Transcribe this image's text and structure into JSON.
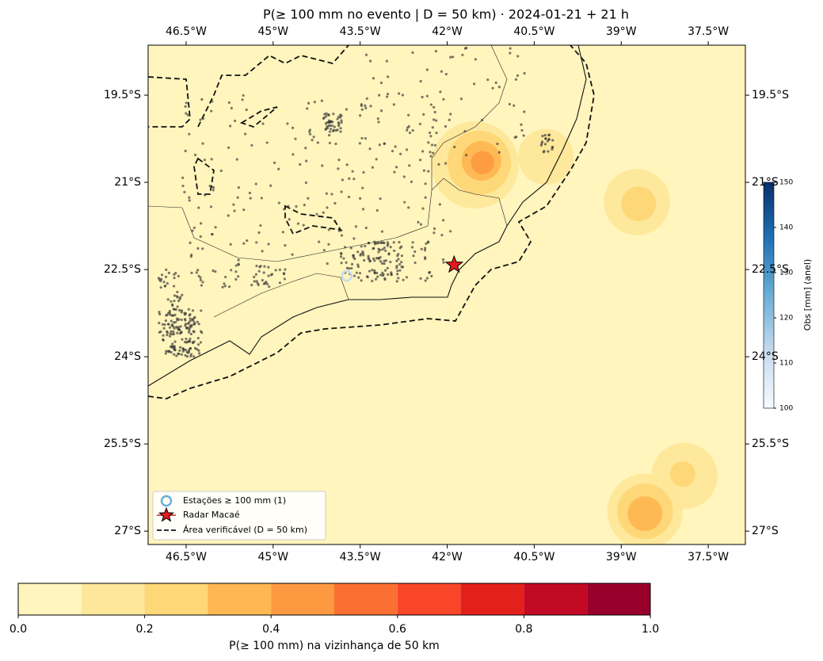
{
  "chart_data": {
    "type": "map",
    "title": "P(≥ 100 mm no evento | D = 50 km)  ·  2024-01-21 + 21 h",
    "xlim": [
      -47.155,
      -36.86
    ],
    "ylim": [
      -27.23,
      -18.64
    ],
    "xticks": [
      {
        "value": -46.5,
        "label": "46.5°W"
      },
      {
        "value": -45,
        "label": "45°W"
      },
      {
        "value": -43.5,
        "label": "43.5°W"
      },
      {
        "value": -42,
        "label": "42°W"
      },
      {
        "value": -40.5,
        "label": "40.5°W"
      },
      {
        "value": -39,
        "label": "39°W"
      },
      {
        "value": -37.5,
        "label": "37.5°W"
      }
    ],
    "yticks": [
      {
        "value": -19.5,
        "label": "19.5°S"
      },
      {
        "value": -21,
        "label": "21°S"
      },
      {
        "value": -22.5,
        "label": "22.5°S"
      },
      {
        "value": -24,
        "label": "24°S"
      },
      {
        "value": -25.5,
        "label": "25.5°S"
      },
      {
        "value": -27,
        "label": "27°S"
      }
    ],
    "probability_areas": [
      {
        "lon": -41.52,
        "lat": -20.7,
        "radius": 0.75,
        "level": 0.1
      },
      {
        "lon": -40.3,
        "lat": -20.56,
        "radius": 0.48,
        "level": 0.1
      },
      {
        "lon": -38.73,
        "lat": -21.34,
        "radius": 0.57,
        "level": 0.1
      },
      {
        "lon": -37.91,
        "lat": -26.05,
        "radius": 0.57,
        "level": 0.1
      },
      {
        "lon": -38.59,
        "lat": -26.66,
        "radius": 0.65,
        "level": 0.1
      },
      {
        "lon": -41.45,
        "lat": -20.66,
        "radius": 0.55,
        "level": 0.2
      },
      {
        "lon": -38.7,
        "lat": -21.37,
        "radius": 0.3,
        "level": 0.2
      },
      {
        "lon": -37.94,
        "lat": -26.02,
        "radius": 0.22,
        "level": 0.2
      },
      {
        "lon": -38.59,
        "lat": -26.66,
        "radius": 0.48,
        "level": 0.2
      },
      {
        "lon": -41.41,
        "lat": -20.63,
        "radius": 0.34,
        "level": 0.3
      },
      {
        "lon": -38.59,
        "lat": -26.7,
        "radius": 0.3,
        "level": 0.3
      },
      {
        "lon": -41.39,
        "lat": -20.66,
        "radius": 0.2,
        "level": 0.4
      }
    ],
    "stations_highlight": [
      {
        "lon": -43.73,
        "lat": -22.61,
        "obs": 118
      }
    ],
    "radar": {
      "lon": -41.88,
      "lat": -22.42,
      "color": "#e31a1c"
    },
    "legend": {
      "position": "lower left",
      "items": [
        "Estações ≥ 100 mm (1)",
        "Radar Macaé",
        "Área verificável (D = 50 km)"
      ]
    },
    "colorbar": {
      "label": "P(≥ 100 mm) na vizinhança de 50 km",
      "levels": [
        0,
        0.1,
        0.2,
        0.3,
        0.4,
        0.5,
        0.6,
        0.7,
        0.8,
        0.9,
        1
      ],
      "colors": [
        "#fff5bd",
        "#fee799",
        "#fed776",
        "#feb752",
        "#fd9a41",
        "#fc6f32",
        "#f94629",
        "#e3211c",
        "#c30a24",
        "#98002b"
      ],
      "ticks": [
        {
          "value": 0,
          "label": "0.0"
        },
        0.2,
        0.4,
        0.6,
        0.8,
        {
          "value": 1,
          "label": "1.0"
        }
      ]
    },
    "obs_colorbar": {
      "label": "Obs [mm] (anel)",
      "lim": [
        100,
        150
      ],
      "ticks": [
        100,
        110,
        120,
        130,
        140,
        150
      ]
    }
  }
}
